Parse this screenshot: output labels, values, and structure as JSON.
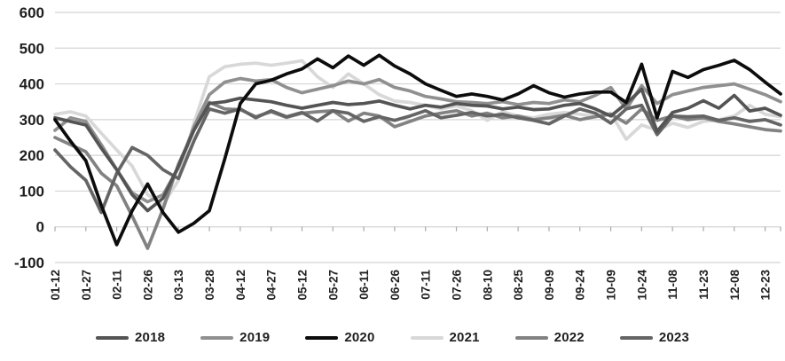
{
  "chart_data": {
    "type": "line",
    "title": "",
    "xlabel": "",
    "ylabel": "",
    "ylim": [
      -100,
      600
    ],
    "yticks": [
      600,
      500,
      400,
      300,
      200,
      100,
      0,
      -100
    ],
    "grid": true,
    "legend_position": "bottom",
    "x_labels": [
      "01-12",
      "01-27",
      "02-11",
      "02-26",
      "03-13",
      "03-28",
      "04-12",
      "04-27",
      "05-12",
      "05-27",
      "06-11",
      "06-26",
      "07-11",
      "07-26",
      "08-10",
      "08-25",
      "09-09",
      "09-24",
      "10-09",
      "10-24",
      "11-08",
      "11-23",
      "12-08",
      "12-23"
    ],
    "points_per_label": 2,
    "series": [
      {
        "name": "2018",
        "color": "#545454",
        "values": [
          305,
          295,
          285,
          220,
          160,
          90,
          45,
          80,
          170,
          270,
          345,
          350,
          360,
          355,
          350,
          340,
          332,
          340,
          348,
          342,
          345,
          352,
          340,
          330,
          340,
          335,
          345,
          340,
          338,
          330,
          335,
          328,
          330,
          340,
          345,
          330,
          310,
          345,
          385,
          267,
          320,
          332,
          353,
          332,
          368,
          324,
          332,
          312
        ]
      },
      {
        "name": "2019",
        "color": "#909090",
        "values": [
          270,
          305,
          295,
          230,
          160,
          95,
          70,
          90,
          165,
          280,
          370,
          405,
          415,
          408,
          412,
          390,
          375,
          385,
          395,
          408,
          400,
          412,
          390,
          380,
          365,
          358,
          350,
          348,
          345,
          350,
          342,
          348,
          345,
          355,
          350,
          368,
          390,
          330,
          395,
          345,
          370,
          380,
          390,
          395,
          400,
          385,
          370,
          350
        ]
      },
      {
        "name": "2020",
        "color": "#0c0c0c",
        "values": [
          300,
          240,
          185,
          60,
          -50,
          45,
          120,
          40,
          -15,
          10,
          45,
          190,
          345,
          400,
          410,
          428,
          442,
          470,
          445,
          478,
          452,
          480,
          450,
          428,
          400,
          382,
          365,
          372,
          365,
          355,
          372,
          395,
          375,
          363,
          372,
          377,
          377,
          348,
          455,
          305,
          435,
          418,
          440,
          452,
          466,
          440,
          405,
          372
        ]
      },
      {
        "name": "2021",
        "color": "#d8d8d8",
        "values": [
          315,
          322,
          310,
          262,
          215,
          170,
          90,
          62,
          130,
          290,
          420,
          448,
          455,
          458,
          452,
          458,
          465,
          420,
          390,
          428,
          400,
          370,
          352,
          348,
          340,
          330,
          338,
          325,
          298,
          322,
          310,
          305,
          315,
          320,
          315,
          308,
          318,
          245,
          285,
          270,
          290,
          278,
          295,
          300,
          310,
          340,
          315,
          308
        ]
      },
      {
        "name": "2022",
        "color": "#828282",
        "values": [
          250,
          230,
          210,
          150,
          115,
          30,
          -60,
          50,
          175,
          270,
          348,
          330,
          328,
          308,
          322,
          306,
          318,
          322,
          325,
          296,
          318,
          310,
          280,
          295,
          310,
          318,
          325,
          310,
          318,
          305,
          310,
          300,
          305,
          312,
          300,
          308,
          315,
          290,
          330,
          298,
          310,
          300,
          305,
          295,
          288,
          280,
          272,
          268
        ]
      },
      {
        "name": "2023",
        "color": "#656565",
        "values": [
          215,
          168,
          130,
          40,
          150,
          222,
          200,
          160,
          135,
          240,
          330,
          318,
          330,
          305,
          325,
          308,
          320,
          296,
          325,
          318,
          295,
          308,
          298,
          310,
          325,
          305,
          312,
          320,
          310,
          315,
          305,
          298,
          288,
          310,
          330,
          318,
          290,
          330,
          340,
          258,
          310,
          308,
          310,
          298,
          305,
          295,
          300,
          285
        ]
      }
    ],
    "draw_order": [
      "2021",
      "2019",
      "2022",
      "2023",
      "2018",
      "2020"
    ],
    "legend_entries": [
      "2018",
      "2019",
      "2020",
      "2021",
      "2022",
      "2023"
    ]
  },
  "colors": {
    "background": "#ffffff",
    "grid": "#d4d4d4",
    "axis": "#b8b8b8",
    "tick": "#a8a8a8",
    "text": "#1f1f1f"
  }
}
